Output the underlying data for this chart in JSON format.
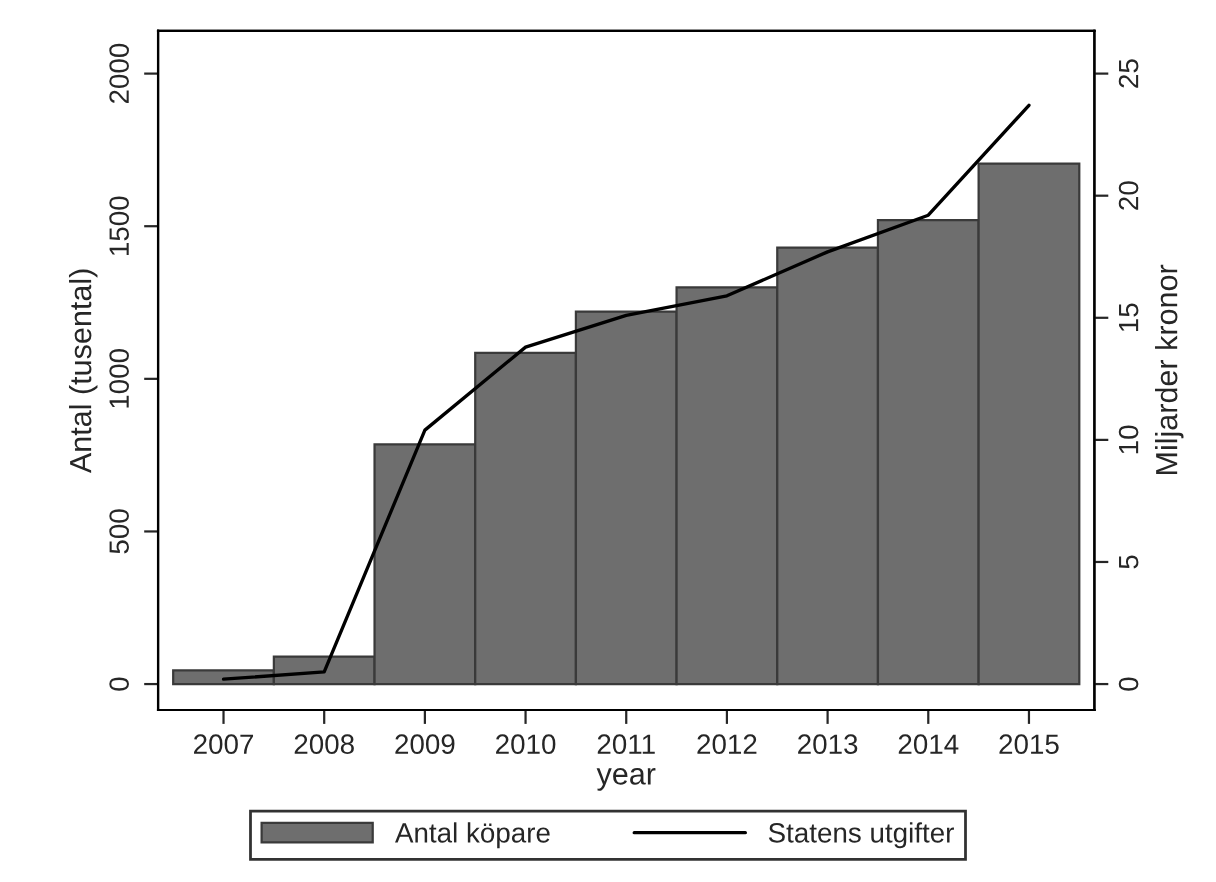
{
  "chart_data": {
    "type": "bar",
    "xlabel": "year",
    "ylabel": "Antal (tusental)",
    "y2label": "Miljarder kronor",
    "categories": [
      "2007",
      "2008",
      "2009",
      "2010",
      "2011",
      "2012",
      "2013",
      "2014",
      "2015"
    ],
    "series": [
      {
        "name": "Antal köpare",
        "color": "#6e6e6e",
        "values": [
          45,
          90,
          785,
          1085,
          1220,
          1300,
          1430,
          1520,
          1705
        ]
      },
      {
        "name": "Statens utgifter",
        "type": "line",
        "axis": "y2",
        "color": "#000000",
        "values": [
          0.2,
          0.5,
          10.4,
          13.8,
          15.1,
          15.9,
          17.7,
          19.2,
          23.7
        ]
      }
    ],
    "ylim": [
      -85,
      2140
    ],
    "yticks": [
      0,
      500,
      1000,
      1500,
      2000
    ],
    "y2lim": [
      -1.0625,
      26.75
    ],
    "y2ticks": [
      0,
      5,
      10,
      15,
      20,
      25
    ],
    "legend": "bottom",
    "grid": false,
    "marker": "none",
    "line_style": "solid"
  }
}
